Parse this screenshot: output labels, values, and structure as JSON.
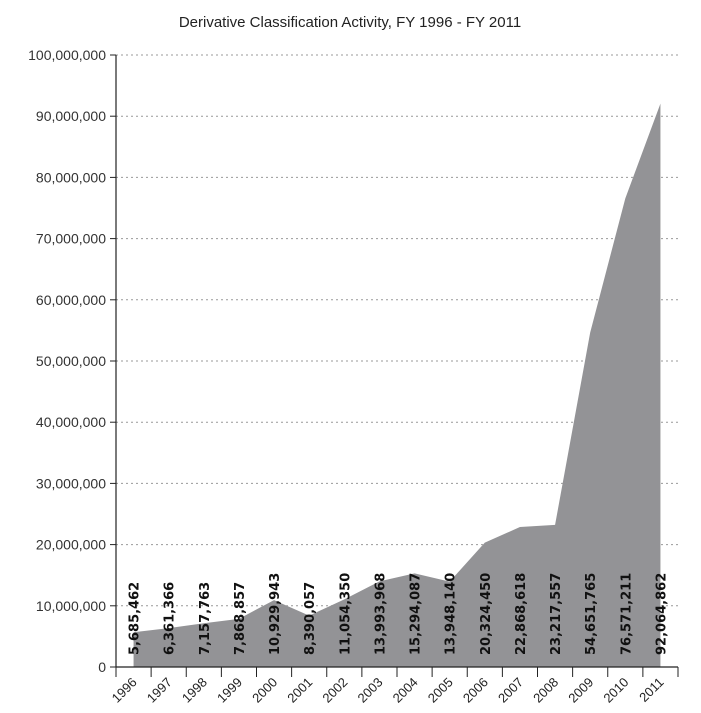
{
  "chart_data": {
    "type": "area",
    "title": "Derivative Classification Activity, FY 1996 - FY 2011",
    "xlabel": "",
    "ylabel": "",
    "categories": [
      "1996",
      "1997",
      "1998",
      "1999",
      "2000",
      "2001",
      "2002",
      "2003",
      "2004",
      "2005",
      "2006",
      "2007",
      "2008",
      "2009",
      "2010",
      "2011"
    ],
    "values": [
      5685462,
      6361366,
      7157763,
      7868857,
      10929943,
      8390057,
      11054350,
      13993968,
      15294087,
      13948140,
      20324450,
      22868618,
      23217557,
      54651765,
      76571211,
      92064862
    ],
    "value_labels": [
      "5,685,462",
      "6,361,366",
      "7,157,763",
      "7,868,857",
      "10,929,943",
      "8,390,057",
      "11,054,350",
      "13,993,968",
      "15,294,087",
      "13,948,140",
      "20,324,450",
      "22,868,618",
      "23,217,557",
      "54,651,765",
      "76,571,211",
      "92,064,862"
    ],
    "ylim": [
      0,
      100000000
    ],
    "yticks": [
      0,
      10000000,
      20000000,
      30000000,
      40000000,
      50000000,
      60000000,
      70000000,
      80000000,
      90000000,
      100000000
    ],
    "ytick_labels": [
      "0",
      "10,000,000",
      "20,000,000",
      "30,000,000",
      "40,000,000",
      "50,000,000",
      "60,000,000",
      "70,000,000",
      "80,000,000",
      "90,000,000",
      "100,000,000"
    ],
    "grid": true,
    "fill_color": "#939396"
  }
}
